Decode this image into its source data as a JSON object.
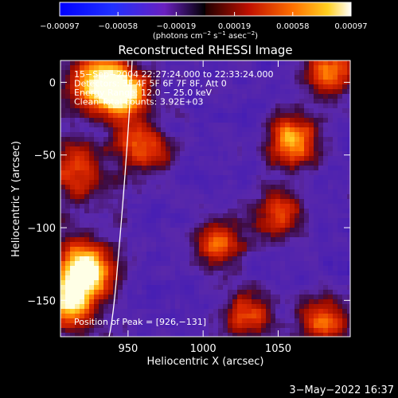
{
  "chart_data": {
    "type": "heatmap",
    "title": "Reconstructed RHESSI Image",
    "xlabel": "Heliocentric X (arcsec)",
    "ylabel": "Heliocentric Y (arcsec)",
    "xlim": [
      905,
      898
    ],
    "x_range": [
      905,
      898
    ],
    "y_range": [
      -175,
      15
    ],
    "x_ticks": [
      {
        "v": 950,
        "label": "950"
      },
      {
        "v": 1000,
        "label": "1000"
      },
      {
        "v": 1050,
        "label": "1050"
      }
    ],
    "y_ticks": [
      {
        "v": 0,
        "label": "0"
      },
      {
        "v": -50,
        "label": "−50"
      },
      {
        "v": -100,
        "label": "−100"
      },
      {
        "v": -150,
        "label": "−150"
      }
    ],
    "colorbar": {
      "ticks": [
        "−0.00097",
        "−0.00058",
        "−0.00019",
        "0.00019",
        "0.00058",
        "0.00097"
      ],
      "unit_main": "(photons cm",
      "unit_sup1": "−2",
      "unit_mid1": " s",
      "unit_sup2": "−1",
      "unit_mid2": " asec",
      "unit_sup3": "−2",
      "unit_end": ")",
      "range": [
        -0.00097,
        0.00097
      ]
    },
    "annotations": [
      "15−Sep−2004 22:27:24.000 to 22:33:24.000",
      "Detectors: 3F 4F 5F 6F 7F 8F, Att 0",
      "Energy Range: 12.0 − 25.0 keV",
      "Clean     Total counts: 3.92E+03"
    ],
    "peak_label": "Position of Peak = [926,−131]",
    "bright_regions": [
      {
        "x": 922,
        "y": -128,
        "level": 1.0
      },
      {
        "x": 912,
        "y": -150,
        "level": 0.85
      },
      {
        "x": 948,
        "y": -8,
        "level": 0.9
      },
      {
        "x": 930,
        "y": 0,
        "level": 0.85
      },
      {
        "x": 1060,
        "y": -40,
        "level": 0.8
      },
      {
        "x": 960,
        "y": -45,
        "level": 0.6
      },
      {
        "x": 1085,
        "y": 8,
        "level": 0.7
      },
      {
        "x": 1010,
        "y": -110,
        "level": 0.6
      },
      {
        "x": 1050,
        "y": -90,
        "level": 0.55
      },
      {
        "x": 1080,
        "y": -165,
        "level": 0.6
      },
      {
        "x": 1030,
        "y": -160,
        "level": 0.55
      },
      {
        "x": 915,
        "y": -60,
        "level": 0.5
      }
    ]
  },
  "footer": {
    "date": "3−May−2022 16:37"
  }
}
